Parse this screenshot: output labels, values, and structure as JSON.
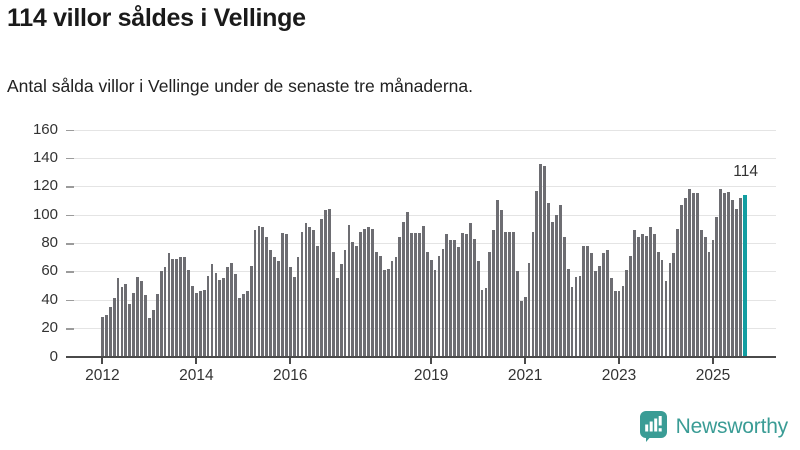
{
  "page": {
    "title": "114 villor såldes i Vellinge",
    "subtitle": "Antal sålda villor i Vellinge under de senaste tre månaderna."
  },
  "chart_data": {
    "type": "bar",
    "title": "114 villor såldes i Vellinge",
    "subtitle": "Antal sålda villor i Vellinge under de senaste tre månaderna.",
    "xlabel": "",
    "ylabel": "",
    "ylim": [
      0,
      160
    ],
    "y_ticks": [
      0,
      20,
      40,
      60,
      80,
      100,
      120,
      140,
      160
    ],
    "grid": true,
    "legend": "none",
    "start_month": "2012-01",
    "x_ticks": [
      {
        "label": "2012",
        "month_index": 0
      },
      {
        "label": "2014",
        "month_index": 24
      },
      {
        "label": "2016",
        "month_index": 48
      },
      {
        "label": "2019",
        "month_index": 84
      },
      {
        "label": "2021",
        "month_index": 108
      },
      {
        "label": "2023",
        "month_index": 132
      },
      {
        "label": "2025",
        "month_index": 156
      }
    ],
    "bar_color": "#6d6d72",
    "highlight_color": "#129ea1",
    "highlight_index": 164,
    "annotation": {
      "text": "114",
      "value": 114
    },
    "values": [
      28,
      29,
      35,
      41,
      55,
      49,
      51,
      37,
      45,
      56,
      53,
      43,
      27,
      33,
      44,
      60,
      63,
      73,
      69,
      69,
      70,
      70,
      61,
      50,
      45,
      46,
      47,
      57,
      65,
      59,
      54,
      55,
      63,
      66,
      58,
      41,
      44,
      46,
      64,
      89,
      92,
      91,
      84,
      75,
      70,
      67,
      87,
      86,
      63,
      56,
      70,
      88,
      94,
      91,
      89,
      78,
      97,
      103,
      104,
      74,
      55,
      65,
      75,
      93,
      81,
      78,
      88,
      90,
      91,
      90,
      74,
      71,
      61,
      62,
      67,
      70,
      84,
      95,
      102,
      87,
      87,
      87,
      92,
      74,
      68,
      61,
      71,
      76,
      86,
      82,
      82,
      77,
      87,
      86,
      94,
      83,
      67,
      47,
      48,
      74,
      89,
      110,
      103,
      88,
      88,
      88,
      60,
      39,
      42,
      66,
      88,
      117,
      136,
      134,
      108,
      95,
      100,
      107,
      84,
      62,
      49,
      56,
      57,
      78,
      78,
      73,
      60,
      64,
      73,
      75,
      55,
      46,
      46,
      50,
      61,
      71,
      89,
      84,
      86,
      85,
      91,
      86,
      74,
      68,
      53,
      66,
      73,
      90,
      107,
      112,
      118,
      115,
      115,
      89,
      84,
      74,
      82,
      98,
      118,
      115,
      116,
      110,
      104,
      112,
      114
    ]
  },
  "footer": {
    "brand": "Newsworthy",
    "brand_color": "#3a9c95",
    "icon": "bar-chart-speech-bubble-icon"
  }
}
